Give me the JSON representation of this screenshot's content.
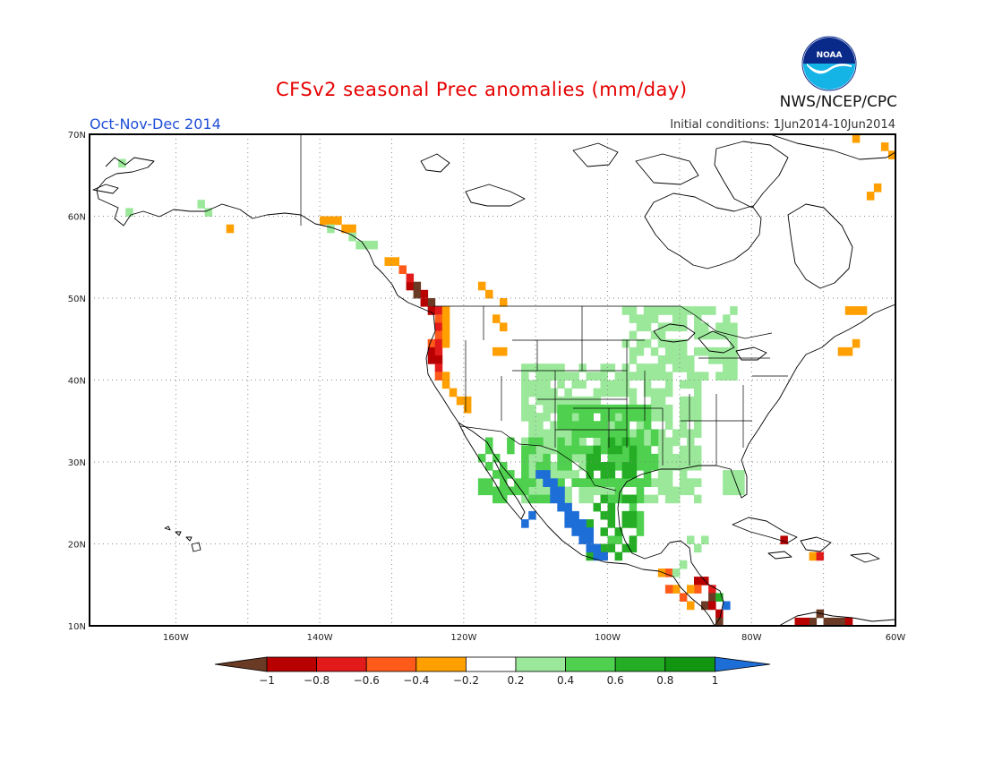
{
  "header": {
    "title": "CFSv2 seasonal Prec anomalies (mm/day)",
    "period": "Oct-Nov-Dec 2014",
    "initial_conditions": "Initial conditions: 1Jun2014-10Jun2014",
    "org": "NWS/NCEP/CPC",
    "logo_text": "NOAA"
  },
  "map": {
    "lat_labels": [
      "70N",
      "60N",
      "50N",
      "40N",
      "30N",
      "20N",
      "10N"
    ],
    "lon_labels": [
      "160W",
      "140W",
      "120W",
      "100W",
      "80W",
      "60W"
    ],
    "grid": "dotted",
    "extent": {
      "lon_min": -172,
      "lon_max": -60,
      "lat_min": 10,
      "lat_max": 70
    }
  },
  "colorbar": {
    "labels": [
      "-1",
      "-0.8",
      "-0.6",
      "-0.4",
      "-0.2",
      "0.2",
      "0.4",
      "0.6",
      "0.8",
      "1"
    ],
    "colors": [
      "#6b3a24",
      "#b80000",
      "#e21a1a",
      "#ff5a1a",
      "#ff9f00",
      "#ffffff",
      "#9be89b",
      "#4fd04f",
      "#25ad25",
      "#129612",
      "#1e6ed8"
    ]
  },
  "anomalies": {
    "pacific_nw_coast_dry": "-0.4 to -1",
    "southwest_mexico_wet": "0.4 to 1",
    "central_plains_wet": "0.2 to 0.6"
  }
}
